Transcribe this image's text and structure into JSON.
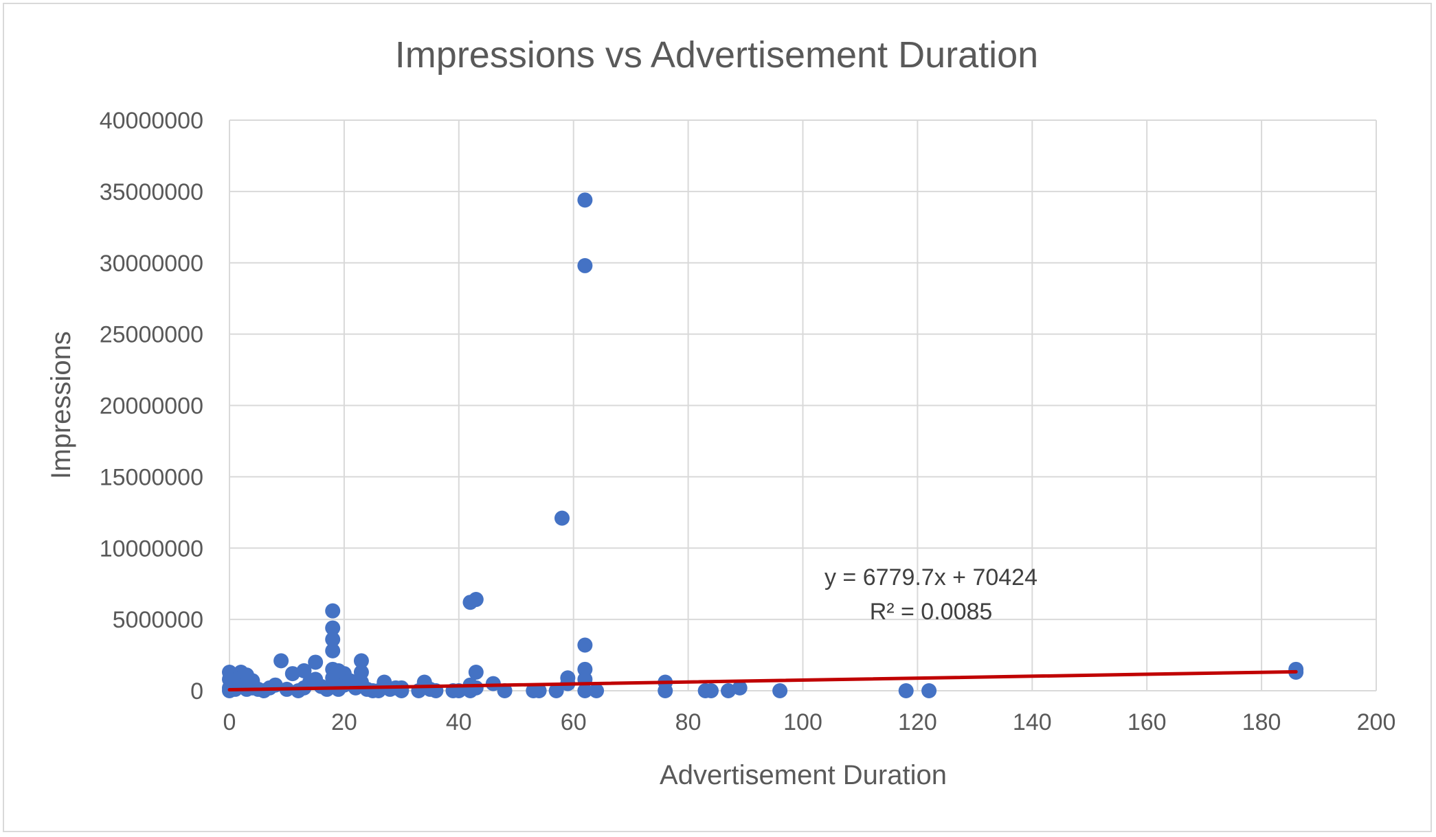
{
  "chart_data": {
    "type": "scatter",
    "title": "Impressions vs Advertisement Duration",
    "xlabel": "Advertisement Duration",
    "ylabel": "Impressions",
    "xlim": [
      0,
      200
    ],
    "ylim": [
      0,
      40000000
    ],
    "xticks": [
      0,
      20,
      40,
      60,
      80,
      100,
      120,
      140,
      160,
      180,
      200
    ],
    "yticks": [
      0,
      5000000,
      10000000,
      15000000,
      20000000,
      25000000,
      30000000,
      35000000,
      40000000
    ],
    "grid": true,
    "colors": {
      "points": "#4472c4",
      "trendline": "#c00000",
      "grid": "#d9d9d9",
      "text": "#595959"
    },
    "series": [
      {
        "points": [
          [
            0,
            1300000
          ],
          [
            0,
            800000
          ],
          [
            0,
            200000
          ],
          [
            0,
            0
          ],
          [
            1,
            600000
          ],
          [
            1,
            100000
          ],
          [
            2,
            1300000
          ],
          [
            2,
            900000
          ],
          [
            2,
            300000
          ],
          [
            3,
            1100000
          ],
          [
            3,
            500000
          ],
          [
            3,
            100000
          ],
          [
            4,
            700000
          ],
          [
            4,
            200000
          ],
          [
            5,
            100000
          ],
          [
            6,
            0
          ],
          [
            7,
            200000
          ],
          [
            8,
            400000
          ],
          [
            9,
            2100000
          ],
          [
            10,
            100000
          ],
          [
            11,
            1200000
          ],
          [
            12,
            0
          ],
          [
            13,
            1400000
          ],
          [
            13,
            200000
          ],
          [
            14,
            600000
          ],
          [
            15,
            2000000
          ],
          [
            15,
            800000
          ],
          [
            16,
            300000
          ],
          [
            17,
            100000
          ],
          [
            18,
            5600000
          ],
          [
            18,
            4400000
          ],
          [
            18,
            3600000
          ],
          [
            18,
            2800000
          ],
          [
            18,
            1500000
          ],
          [
            18,
            900000
          ],
          [
            19,
            1400000
          ],
          [
            19,
            800000
          ],
          [
            19,
            100000
          ],
          [
            20,
            1200000
          ],
          [
            20,
            400000
          ],
          [
            21,
            700000
          ],
          [
            22,
            200000
          ],
          [
            23,
            2100000
          ],
          [
            23,
            1300000
          ],
          [
            23,
            600000
          ],
          [
            24,
            100000
          ],
          [
            25,
            0
          ],
          [
            26,
            0
          ],
          [
            27,
            600000
          ],
          [
            28,
            100000
          ],
          [
            29,
            200000
          ],
          [
            30,
            200000
          ],
          [
            30,
            0
          ],
          [
            33,
            0
          ],
          [
            34,
            600000
          ],
          [
            35,
            100000
          ],
          [
            36,
            0
          ],
          [
            39,
            0
          ],
          [
            40,
            0
          ],
          [
            42,
            6200000
          ],
          [
            42,
            400000
          ],
          [
            42,
            0
          ],
          [
            43,
            6400000
          ],
          [
            43,
            1300000
          ],
          [
            43,
            200000
          ],
          [
            46,
            500000
          ],
          [
            48,
            0
          ],
          [
            53,
            0
          ],
          [
            54,
            0
          ],
          [
            57,
            0
          ],
          [
            58,
            12100000
          ],
          [
            59,
            900000
          ],
          [
            59,
            500000
          ],
          [
            62,
            34400000
          ],
          [
            62,
            29800000
          ],
          [
            62,
            3200000
          ],
          [
            62,
            1500000
          ],
          [
            62,
            800000
          ],
          [
            62,
            0
          ],
          [
            64,
            0
          ],
          [
            76,
            600000
          ],
          [
            76,
            0
          ],
          [
            83,
            0
          ],
          [
            84,
            0
          ],
          [
            87,
            0
          ],
          [
            89,
            200000
          ],
          [
            96,
            0
          ],
          [
            118,
            0
          ],
          [
            122,
            0
          ],
          [
            186,
            1500000
          ],
          [
            186,
            1300000
          ]
        ]
      }
    ],
    "trendline": {
      "slope": 6779.7,
      "intercept": 70424,
      "x_range": [
        0,
        186
      ],
      "equation_label": "y = 6779.7x + 70424",
      "r2_label": "R² = 0.0085"
    }
  }
}
